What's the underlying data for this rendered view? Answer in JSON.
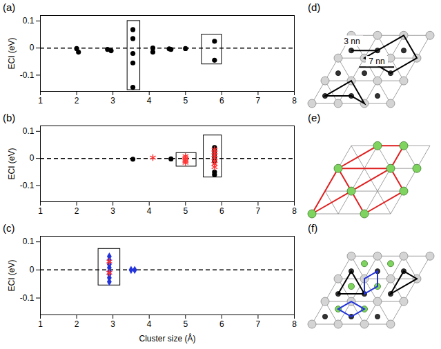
{
  "chart_data": [
    {
      "type": "scatter",
      "title": "(a)",
      "ylabel": "ECI (eV)",
      "xlim": [
        1,
        8
      ],
      "xticks": [
        1,
        2,
        3,
        4,
        5,
        6,
        7,
        8
      ],
      "ylim": [
        -0.16,
        0.12
      ],
      "yticks": [
        -0.1,
        0,
        0.1
      ],
      "hline": 0,
      "series": [
        {
          "color": "#000000",
          "marker": "circle",
          "x": [
            2.0,
            2.05,
            2.85,
            2.95,
            3.55,
            3.55,
            3.55,
            3.55,
            3.55,
            4.1,
            4.1,
            4.55,
            4.6,
            5.0,
            5.8,
            5.8
          ],
          "values": [
            -0.002,
            -0.015,
            -0.005,
            -0.01,
            0.068,
            0.035,
            -0.02,
            -0.055,
            -0.145,
            0.0,
            -0.015,
            -0.003,
            -0.005,
            -0.002,
            0.025,
            -0.045
          ]
        }
      ],
      "boxes": [
        {
          "x1": 3.4,
          "x2": 3.75,
          "y1": -0.155,
          "y2": 0.1
        },
        {
          "x1": 5.45,
          "x2": 6.0,
          "y1": -0.06,
          "y2": 0.05
        }
      ]
    },
    {
      "type": "scatter",
      "title": "(b)",
      "ylabel": "ECI (eV)",
      "xlim": [
        1,
        8
      ],
      "xticks": [
        1,
        2,
        3,
        4,
        5,
        6,
        7,
        8
      ],
      "ylim": [
        -0.16,
        0.12
      ],
      "yticks": [
        -0.1,
        0,
        0.1
      ],
      "hline": 0,
      "series": [
        {
          "color": "#000000",
          "marker": "circle",
          "x": [
            3.55,
            4.6,
            5.8,
            5.8,
            5.8,
            5.8,
            5.8,
            5.8,
            5.8,
            5.8,
            5.8
          ],
          "values": [
            -0.003,
            -0.002,
            0.04,
            0.032,
            0.025,
            0.015,
            0.005,
            -0.005,
            -0.012,
            -0.05,
            -0.06
          ]
        },
        {
          "color": "#ff3333",
          "marker": "asterisk",
          "x": [
            4.1,
            5.0,
            5.0,
            5.0,
            5.0,
            5.0,
            5.8,
            5.8,
            5.8,
            5.8,
            5.8,
            5.8,
            5.8
          ],
          "values": [
            0.003,
            0.008,
            0.002,
            -0.004,
            -0.01,
            -0.016,
            0.032,
            0.022,
            0.012,
            0.002,
            -0.01,
            -0.02,
            -0.032
          ]
        }
      ],
      "boxes": [
        {
          "x1": 4.75,
          "x2": 5.3,
          "y1": -0.03,
          "y2": 0.02
        },
        {
          "x1": 5.5,
          "x2": 6.0,
          "y1": -0.07,
          "y2": 0.085
        }
      ]
    },
    {
      "type": "scatter",
      "title": "(c)",
      "xlabel": "Cluster size (Å)",
      "ylabel": "ECI (eV)",
      "xlim": [
        1,
        8
      ],
      "xticks": [
        1,
        2,
        3,
        4,
        5,
        6,
        7,
        8
      ],
      "ylim": [
        -0.16,
        0.12
      ],
      "yticks": [
        -0.1,
        0,
        0.1
      ],
      "hline": 0,
      "series": [
        {
          "color": "#2233dd",
          "marker": "diamond",
          "x": [
            2.9,
            2.9,
            2.9,
            2.9,
            2.9,
            2.9,
            2.9,
            2.9,
            3.5,
            3.6
          ],
          "values": [
            0.048,
            0.035,
            0.02,
            0.008,
            -0.005,
            -0.015,
            -0.028,
            -0.042,
            0.0,
            0.0
          ]
        },
        {
          "color": "#ff3333",
          "marker": "asterisk",
          "x": [
            2.9,
            2.9
          ],
          "values": [
            0.03,
            -0.01
          ]
        }
      ],
      "boxes": [
        {
          "x1": 2.6,
          "x2": 3.2,
          "y1": -0.055,
          "y2": 0.075
        }
      ]
    }
  ],
  "diagrams": [
    {
      "label": "(d)",
      "annotations": [
        "3 nn",
        "7 nn"
      ]
    },
    {
      "label": "(e)"
    },
    {
      "label": "(f)"
    }
  ]
}
